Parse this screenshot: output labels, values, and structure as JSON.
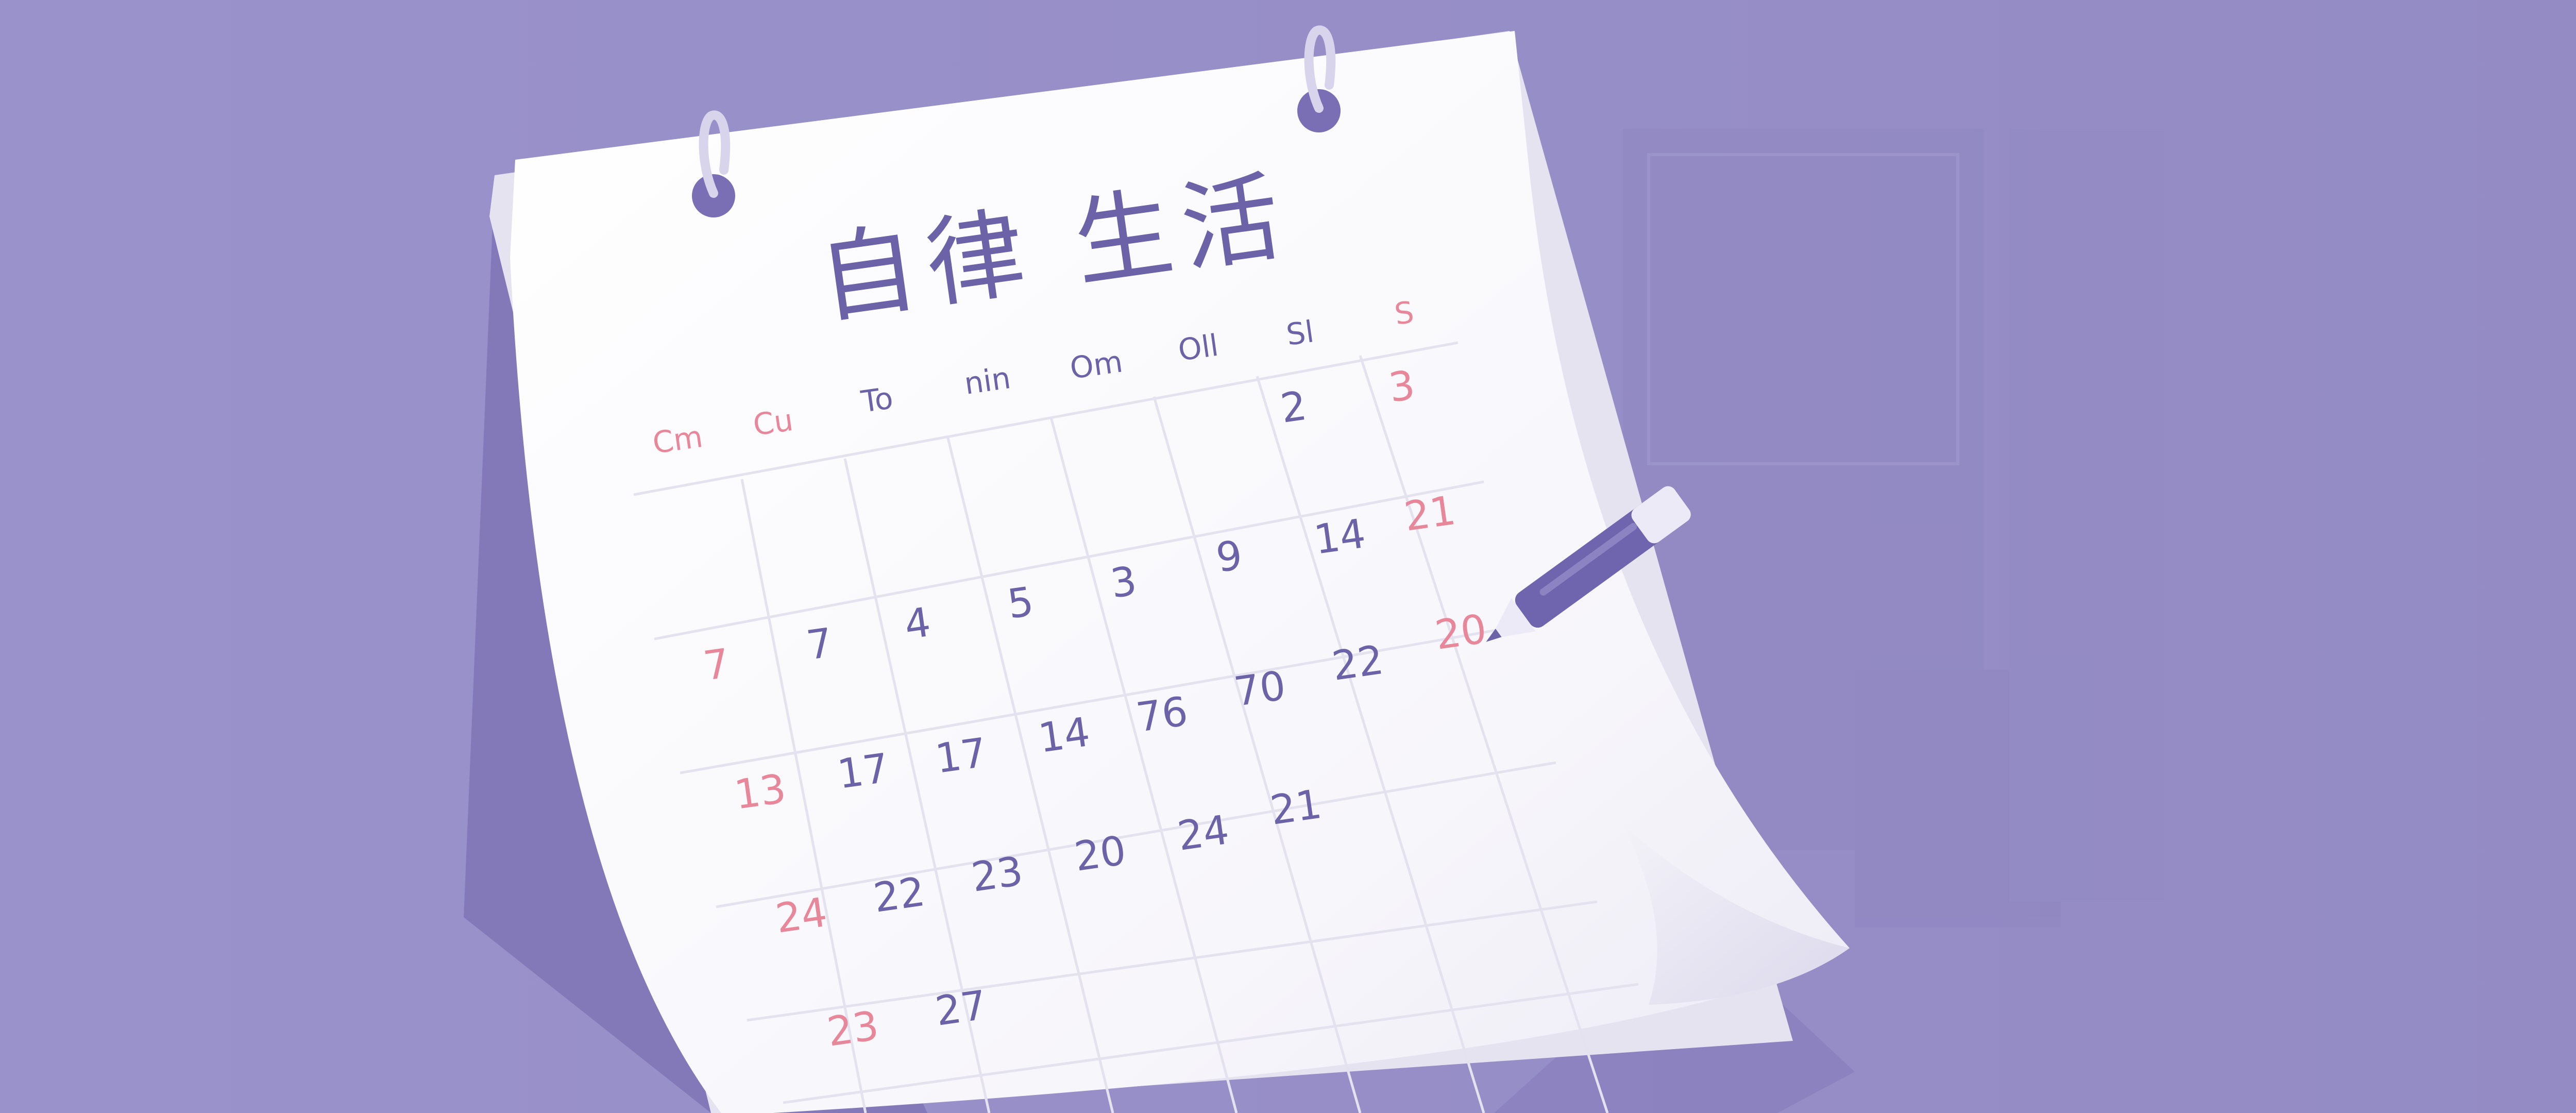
{
  "colors": {
    "background": "#9890C8",
    "paper": "#FBFBFD",
    "paper_shadow": "#7C72B6",
    "ink": "#6B62A8",
    "weekend": "#E8879A",
    "grid": "#E4E2EE",
    "pen_body": "#6F64AE",
    "pen_light": "#ECEAF6"
  },
  "calendar": {
    "title": "自律 生活",
    "weekdays": [
      {
        "label": "Cm",
        "weekend": true
      },
      {
        "label": "Cu",
        "weekend": true
      },
      {
        "label": "To",
        "weekend": false
      },
      {
        "label": "nin",
        "weekend": false
      },
      {
        "label": "Om",
        "weekend": false
      },
      {
        "label": "Oll",
        "weekend": false
      },
      {
        "label": "Sl",
        "weekend": false
      },
      {
        "label": "S",
        "weekend": true
      }
    ],
    "rows": [
      [
        null,
        null,
        null,
        null,
        null,
        null,
        "2",
        "3"
      ],
      [
        null,
        null,
        null,
        null,
        null,
        null,
        null,
        null
      ],
      [
        null,
        null,
        null,
        null,
        null,
        null,
        null,
        null
      ],
      [
        null,
        null,
        null,
        null,
        null,
        null,
        null,
        null
      ],
      [
        null,
        null,
        null,
        null,
        null,
        null,
        null,
        null
      ]
    ],
    "numbers": [
      {
        "text": "2",
        "weekend": false
      },
      {
        "text": "3",
        "weekend": true
      },
      {
        "text": "21",
        "weekend": true
      },
      {
        "text": "7",
        "weekend": true
      },
      {
        "text": "7",
        "weekend": false
      },
      {
        "text": "4",
        "weekend": false
      },
      {
        "text": "5",
        "weekend": false
      },
      {
        "text": "3",
        "weekend": false
      },
      {
        "text": "9",
        "weekend": false
      },
      {
        "text": "14",
        "weekend": false
      },
      {
        "text": "20",
        "weekend": true
      },
      {
        "text": "13",
        "weekend": true
      },
      {
        "text": "17",
        "weekend": false
      },
      {
        "text": "17",
        "weekend": false
      },
      {
        "text": "14",
        "weekend": false
      },
      {
        "text": "76",
        "weekend": false
      },
      {
        "text": "70",
        "weekend": false
      },
      {
        "text": "22",
        "weekend": false
      },
      {
        "text": "24",
        "weekend": true
      },
      {
        "text": "22",
        "weekend": false
      },
      {
        "text": "23",
        "weekend": false
      },
      {
        "text": "20",
        "weekend": false
      },
      {
        "text": "24",
        "weekend": false
      },
      {
        "text": "21",
        "weekend": false
      },
      {
        "text": "23",
        "weekend": true
      },
      {
        "text": "27",
        "weekend": false
      }
    ]
  }
}
